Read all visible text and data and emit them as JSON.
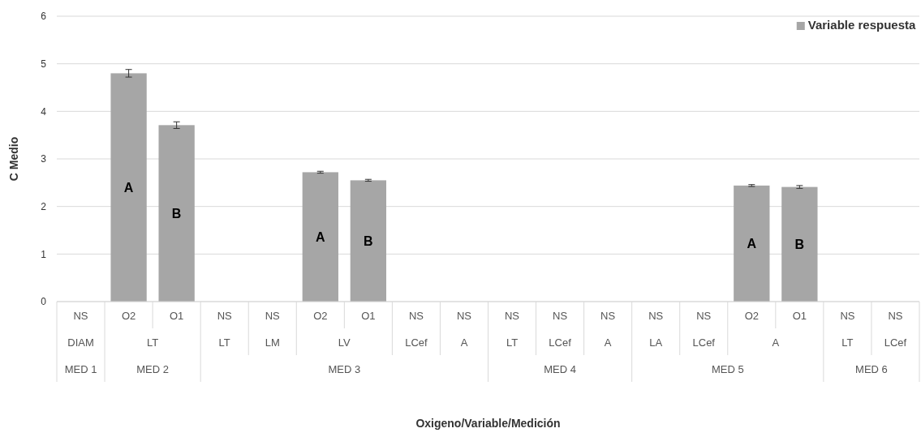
{
  "chart_data": {
    "type": "bar",
    "ylabel": "C Medio",
    "categories": [
      "NS",
      "O2",
      "O1",
      "NS",
      "NS",
      "O2",
      "O1",
      "NS",
      "NS",
      "NS",
      "NS",
      "NS",
      "NS",
      "NS",
      "O2",
      "O1",
      "NS",
      "NS"
    ],
    "annotations": [
      "DIAM",
      "LT",
      "LT",
      "LM",
      "LV",
      "LCef",
      "A",
      "LT",
      "LCef",
      "A",
      "LA",
      "LCef",
      "A",
      "LT",
      "LCef",
      "MED 1",
      "MED 2",
      "MED 3",
      "MED 4",
      "MED 5",
      "MED 6",
      "Oxigeno/Variable/Medición"
    ],
    "series": [
      {
        "name": "Variable respuesta",
        "color": "#a6a6a6",
        "values": [
          null,
          4.8,
          3.71,
          null,
          null,
          2.72,
          2.55,
          null,
          null,
          null,
          null,
          null,
          null,
          null,
          2.44,
          2.41,
          null,
          null
        ],
        "errors": [
          null,
          0.08,
          0.07,
          null,
          null,
          0.02,
          0.02,
          null,
          null,
          null,
          null,
          null,
          null,
          null,
          0.02,
          0.03,
          null,
          null
        ],
        "value_labels": [
          null,
          "A",
          "B",
          null,
          null,
          "A",
          "B",
          null,
          null,
          null,
          null,
          null,
          null,
          null,
          "A",
          "B",
          null,
          null
        ]
      }
    ],
    "ylim": [
      0,
      6
    ],
    "yticks": [
      0,
      1,
      2,
      3,
      4,
      5,
      6
    ],
    "grid": "y",
    "legend": "top right"
  }
}
